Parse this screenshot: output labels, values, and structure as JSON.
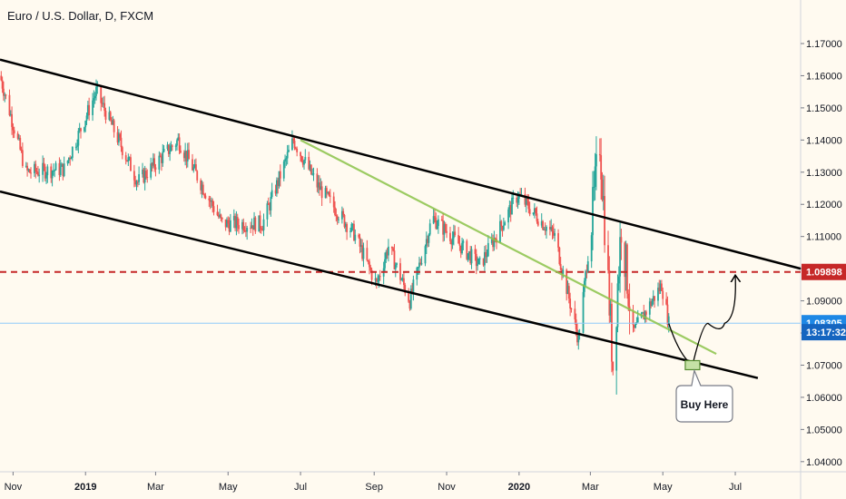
{
  "header": {
    "title": "Euro / U.S. Dollar, D, FXCM"
  },
  "colors": {
    "background": "#fffaf0",
    "up": "#26a69a",
    "down": "#ef5350",
    "channel": "#000000",
    "resistance": "#c62828",
    "trendline": "#8bc34a",
    "price_line": "#90caf9",
    "price_tag": "#1e88e5",
    "resistance_tag": "#c62828",
    "countdown_tag": "#1565c0"
  },
  "chart_data": {
    "type": "candlestick",
    "title": "Euro / U.S. Dollar, D, FXCM",
    "x_range": [
      "2018-10-21",
      "2020-08-25"
    ],
    "ylim": [
      1.036,
      1.181
    ],
    "y_ticks": [
      "1.17000",
      "1.16000",
      "1.15000",
      "1.14000",
      "1.13000",
      "1.12000",
      "1.11000",
      "1.10000",
      "1.09000",
      "1.08000",
      "1.07000",
      "1.06000",
      "1.05000",
      "1.04000"
    ],
    "x_ticks": [
      {
        "label": "Nov",
        "date": "2018-11-01",
        "bold": false
      },
      {
        "label": "2019",
        "date": "2019-01-01",
        "bold": true
      },
      {
        "label": "Mar",
        "date": "2019-03-01",
        "bold": false
      },
      {
        "label": "May",
        "date": "2019-05-01",
        "bold": false
      },
      {
        "label": "Jul",
        "date": "2019-07-01",
        "bold": false
      },
      {
        "label": "Sep",
        "date": "2019-09-01",
        "bold": false
      },
      {
        "label": "Nov",
        "date": "2019-11-01",
        "bold": false
      },
      {
        "label": "2020",
        "date": "2020-01-01",
        "bold": true
      },
      {
        "label": "Mar",
        "date": "2020-03-01",
        "bold": false
      },
      {
        "label": "May",
        "date": "2020-05-01",
        "bold": false
      },
      {
        "label": "Jul",
        "date": "2020-07-01",
        "bold": false
      }
    ],
    "price_path": [
      [
        "2018-10-21",
        1.16
      ],
      [
        "2018-11-12",
        1.13
      ],
      [
        "2018-12-14",
        1.131
      ],
      [
        "2019-01-10",
        1.155
      ],
      [
        "2019-02-14",
        1.127
      ],
      [
        "2019-03-20",
        1.14
      ],
      [
        "2019-04-26",
        1.114
      ],
      [
        "2019-05-30",
        1.114
      ],
      [
        "2019-06-25",
        1.14
      ],
      [
        "2019-07-15",
        1.126
      ],
      [
        "2019-08-15",
        1.111
      ],
      [
        "2019-09-03",
        1.095
      ],
      [
        "2019-09-13",
        1.107
      ],
      [
        "2019-10-01",
        1.09
      ],
      [
        "2019-10-20",
        1.116
      ],
      [
        "2019-11-29",
        1.101
      ],
      [
        "2019-12-31",
        1.123
      ],
      [
        "2020-01-31",
        1.11
      ],
      [
        "2020-02-20",
        1.078
      ],
      [
        "2020-03-03",
        1.118
      ],
      [
        "2020-03-09",
        1.14
      ],
      [
        "2020-03-20",
        1.07
      ],
      [
        "2020-03-27",
        1.114
      ],
      [
        "2020-04-06",
        1.08
      ],
      [
        "2020-04-30",
        1.095
      ],
      [
        "2020-05-06",
        1.083
      ]
    ],
    "lines": {
      "channel_upper": [
        [
          "2018-10-21",
          1.165
        ],
        [
          "2020-08-25",
          1.1
        ]
      ],
      "channel_lower": [
        [
          "2018-10-21",
          1.124
        ],
        [
          "2020-07-20",
          1.066
        ]
      ],
      "trendline": [
        [
          "2019-07-01",
          1.14
        ],
        [
          "2020-06-15",
          1.0735
        ]
      ],
      "resistance": 1.09898,
      "last_price": 1.08305,
      "projection": [
        [
          "2020-05-06",
          1.083
        ],
        [
          "2020-05-26",
          1.07
        ],
        [
          "2020-06-08",
          1.083
        ],
        [
          "2020-06-22",
          1.083
        ],
        [
          "2020-07-01",
          1.098
        ]
      ]
    },
    "buy_zone": {
      "date": "2020-05-26",
      "price": 1.07
    },
    "price_labels": {
      "resistance": "1.09898",
      "last": "1.08305",
      "countdown": "13:17:32"
    },
    "annotation": "Buy Here"
  }
}
